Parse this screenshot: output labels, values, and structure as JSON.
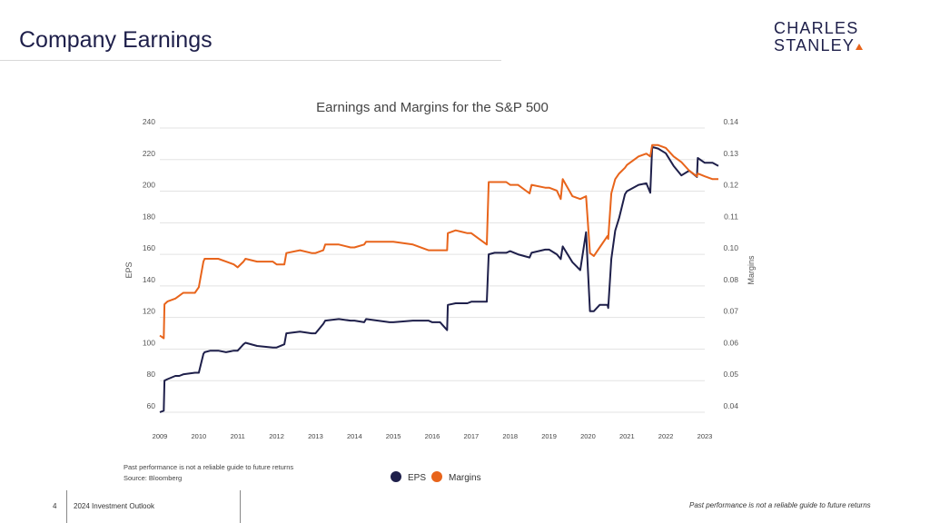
{
  "slide": {
    "title": "Company Earnings",
    "logo_line1": "CHARLES",
    "logo_line2": "STANLEY",
    "footnote_1": "Past performance is not a  reliable guide to future returns",
    "footnote_2": "Source: Bloomberg",
    "page_number": "4",
    "footer_title": "2024 Investment Outlook",
    "footer_disclaimer": "Past performance is not a reliable guide to future returns"
  },
  "colors": {
    "eps": "#1e1f4a",
    "margins": "#e8641b",
    "title": "#1e1f4a",
    "grid": "#e3e3e3"
  },
  "chart_data": {
    "type": "line",
    "title": "Earnings and Margins for the S&P 500",
    "xlabel": "",
    "ylabel": "EPS",
    "y2label": "Margins",
    "ylim": [
      60,
      240
    ],
    "y2lim": [
      0.04,
      0.14
    ],
    "yticks": [
      "240",
      "220",
      "200",
      "180",
      "160",
      "140",
      "120",
      "100",
      "80",
      "60"
    ],
    "y2ticks": [
      "0.14",
      "0.13",
      "0.12",
      "0.11",
      "0.10",
      "0.08",
      "0.07",
      "0.06",
      "0.05",
      "0.04"
    ],
    "xticks": [
      "2009",
      "2010",
      "2011",
      "2012",
      "2013",
      "2014",
      "2015",
      "2016",
      "2017",
      "2018",
      "2019",
      "2020",
      "2021",
      "2022",
      "2023"
    ],
    "legend": [
      "EPS",
      "Margins"
    ],
    "legend_position": "bottom-center",
    "series": [
      {
        "name": "EPS",
        "axis": "left",
        "x": [
          2009.0,
          2009.1,
          2009.12,
          2009.2,
          2009.4,
          2009.5,
          2009.6,
          2009.9,
          2010.0,
          2010.12,
          2010.15,
          2010.3,
          2010.5,
          2010.7,
          2010.9,
          2011.0,
          2011.15,
          2011.2,
          2011.5,
          2011.9,
          2012.0,
          2012.2,
          2012.25,
          2012.6,
          2012.9,
          2013.0,
          2013.2,
          2013.25,
          2013.6,
          2013.9,
          2014.0,
          2014.25,
          2014.3,
          2014.6,
          2014.9,
          2015.0,
          2015.5,
          2015.9,
          2016.0,
          2016.2,
          2016.38,
          2016.4,
          2016.6,
          2016.9,
          2017.0,
          2017.4,
          2017.45,
          2017.6,
          2017.9,
          2018.0,
          2018.2,
          2018.5,
          2018.55,
          2018.9,
          2019.0,
          2019.2,
          2019.3,
          2019.35,
          2019.6,
          2019.8,
          2019.95,
          2020.05,
          2020.15,
          2020.3,
          2020.5,
          2020.52,
          2020.6,
          2020.7,
          2020.8,
          2020.95,
          2021.0,
          2021.3,
          2021.5,
          2021.6,
          2021.65,
          2021.8,
          2022.0,
          2022.2,
          2022.4,
          2022.6,
          2022.8,
          2022.82,
          2023.0,
          2023.2,
          2023.35
        ],
        "values": [
          60,
          61,
          80,
          81,
          83,
          83,
          84,
          85,
          85,
          97,
          98,
          99,
          99,
          98,
          99,
          99,
          103,
          104,
          102,
          101,
          101,
          103,
          110,
          111,
          110,
          110,
          116,
          118,
          119,
          118,
          118,
          117,
          119,
          118,
          117,
          117,
          118,
          118,
          117,
          117,
          112,
          128,
          129,
          129,
          130,
          130,
          160,
          161,
          161,
          162,
          160,
          158,
          161,
          163,
          163,
          160,
          157,
          165,
          155,
          150,
          174,
          124,
          124,
          128,
          128,
          126,
          157,
          175,
          183,
          198,
          200,
          204,
          205,
          199,
          228,
          227,
          224,
          216,
          210,
          213,
          209,
          221,
          218,
          218,
          216
        ]
      },
      {
        "name": "Margins",
        "axis": "right",
        "x": [
          2009.0,
          2009.1,
          2009.12,
          2009.2,
          2009.4,
          2009.5,
          2009.6,
          2009.9,
          2010.0,
          2010.12,
          2010.15,
          2010.3,
          2010.5,
          2010.7,
          2010.9,
          2011.0,
          2011.15,
          2011.2,
          2011.5,
          2011.9,
          2012.0,
          2012.2,
          2012.25,
          2012.6,
          2012.9,
          2013.0,
          2013.2,
          2013.25,
          2013.6,
          2013.9,
          2014.0,
          2014.25,
          2014.3,
          2014.6,
          2014.9,
          2015.0,
          2015.5,
          2015.9,
          2016.0,
          2016.2,
          2016.38,
          2016.4,
          2016.6,
          2016.9,
          2017.0,
          2017.4,
          2017.45,
          2017.6,
          2017.9,
          2018.0,
          2018.2,
          2018.5,
          2018.55,
          2018.9,
          2019.0,
          2019.2,
          2019.3,
          2019.35,
          2019.6,
          2019.8,
          2019.95,
          2020.05,
          2020.15,
          2020.3,
          2020.5,
          2020.52,
          2020.6,
          2020.7,
          2020.8,
          2020.95,
          2021.0,
          2021.3,
          2021.5,
          2021.6,
          2021.65,
          2021.8,
          2022.0,
          2022.2,
          2022.4,
          2022.6,
          2022.8,
          2022.82,
          2023.0,
          2023.2,
          2023.35
        ],
        "values": [
          0.067,
          0.066,
          0.078,
          0.079,
          0.08,
          0.081,
          0.082,
          0.082,
          0.084,
          0.093,
          0.094,
          0.094,
          0.094,
          0.093,
          0.092,
          0.091,
          0.093,
          0.094,
          0.093,
          0.093,
          0.092,
          0.092,
          0.096,
          0.097,
          0.096,
          0.096,
          0.097,
          0.099,
          0.099,
          0.098,
          0.098,
          0.099,
          0.1,
          0.1,
          0.1,
          0.1,
          0.099,
          0.097,
          0.097,
          0.097,
          0.097,
          0.103,
          0.104,
          0.103,
          0.103,
          0.099,
          0.121,
          0.121,
          0.121,
          0.12,
          0.12,
          0.117,
          0.12,
          0.119,
          0.119,
          0.118,
          0.115,
          0.122,
          0.116,
          0.115,
          0.116,
          0.096,
          0.095,
          0.098,
          0.102,
          0.101,
          0.117,
          0.122,
          0.124,
          0.126,
          0.127,
          0.13,
          0.131,
          0.13,
          0.134,
          0.134,
          0.133,
          0.13,
          0.128,
          0.125,
          0.123,
          0.124,
          0.123,
          0.122,
          0.122
        ]
      }
    ]
  }
}
